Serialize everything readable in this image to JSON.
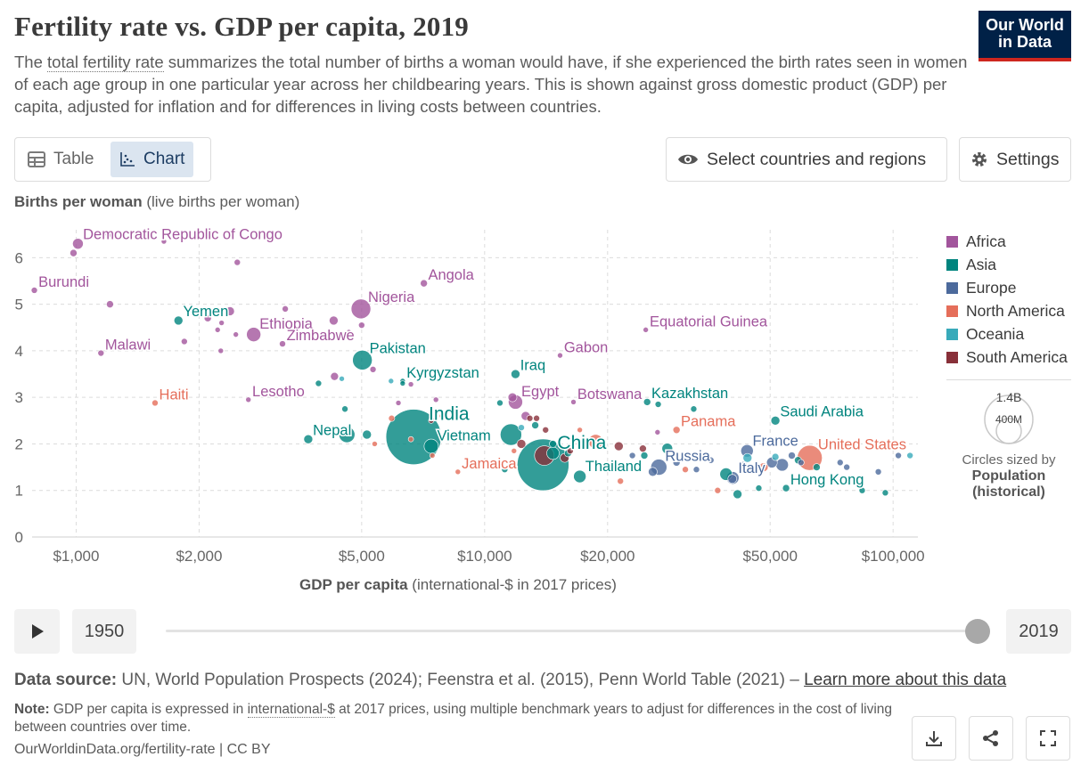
{
  "header": {
    "title": "Fertility rate vs. GDP per capita, 2019",
    "subtitle_before": "The ",
    "subtitle_link": "total fertility rate",
    "subtitle_after": " summarizes the total number of births a woman would have, if she experienced the birth rates seen in women of each age group in one particular year across her childbearing years. This is shown against gross domestic product (GDP) per capita, adjusted for inflation and for differences in living costs between countries.",
    "logo_line1": "Our World",
    "logo_line2": "in Data"
  },
  "controls": {
    "table_label": "Table",
    "chart_label": "Chart",
    "select_label": "Select countries and regions",
    "settings_label": "Settings"
  },
  "colors": {
    "Africa": "#a2559c",
    "Asia": "#00847e",
    "Europe": "#4c6a9c",
    "North America": "#e56e5a",
    "Oceania": "#38aaba",
    "South America": "#883039"
  },
  "chart_data": {
    "type": "scatter",
    "title": "Fertility rate vs. GDP per capita, 2019",
    "ylabel_bold": "Births per woman",
    "ylabel_rest": " (live births per woman)",
    "xlabel_bold": "GDP per capita",
    "xlabel_rest": " (international-$ in 2017 prices)",
    "x_scale": "log",
    "xlim": [
      780,
      115000
    ],
    "ylim": [
      0,
      6.6
    ],
    "x_ticks": [
      {
        "value": 1000,
        "label": "$1,000"
      },
      {
        "value": 2000,
        "label": "$2,000"
      },
      {
        "value": 5000,
        "label": "$5,000"
      },
      {
        "value": 10000,
        "label": "$10,000"
      },
      {
        "value": 20000,
        "label": "$20,000"
      },
      {
        "value": 50000,
        "label": "$50,000"
      },
      {
        "value": 100000,
        "label": "$100,000"
      }
    ],
    "y_ticks": [
      0,
      1,
      2,
      3,
      4,
      5,
      6
    ],
    "grid": true,
    "legend_position": "right",
    "legend": [
      "Africa",
      "Asia",
      "Europe",
      "North America",
      "Oceania",
      "South America"
    ],
    "size_legend": {
      "large": "1.4B",
      "small": "400M",
      "caption": "Circles sized by",
      "caption_bold": "Population (historical)"
    },
    "points": [
      {
        "label": "Democratic Republic of Congo",
        "region": "Africa",
        "x": 1010,
        "y": 6.3,
        "r": 6
      },
      {
        "label": "Burundi",
        "region": "Africa",
        "x": 790,
        "y": 5.3,
        "r": 3.5
      },
      {
        "label": "Angola",
        "region": "Africa",
        "x": 7100,
        "y": 5.45,
        "r": 4
      },
      {
        "label": "Nigeria",
        "region": "Africa",
        "x": 4980,
        "y": 4.9,
        "r": 11
      },
      {
        "label": "Yemen",
        "region": "Asia",
        "x": 1780,
        "y": 4.65,
        "r": 5
      },
      {
        "label": "Ethiopia",
        "region": "Africa",
        "x": 2720,
        "y": 4.35,
        "r": 8
      },
      {
        "label": "Pakistan",
        "region": "Asia",
        "x": 5020,
        "y": 3.8,
        "r": 11
      },
      {
        "label": "Malawi",
        "region": "Africa",
        "x": 1150,
        "y": 3.95,
        "r": 3.5
      },
      {
        "label": "Zimbabwe",
        "region": "Africa",
        "x": 3200,
        "y": 4.15,
        "r": 3.5
      },
      {
        "label": "Equatorial Guinea",
        "region": "Africa",
        "x": 24800,
        "y": 4.45,
        "r": 3
      },
      {
        "label": "Gabon",
        "region": "Africa",
        "x": 15300,
        "y": 3.9,
        "r": 3
      },
      {
        "label": "Kyrgyzstan",
        "region": "Asia",
        "x": 6300,
        "y": 3.35,
        "r": 3
      },
      {
        "label": "Iraq",
        "region": "Asia",
        "x": 11900,
        "y": 3.5,
        "r": 5
      },
      {
        "label": "Haiti",
        "region": "North America",
        "x": 1560,
        "y": 2.88,
        "r": 3.5
      },
      {
        "label": "Lesotho",
        "region": "Africa",
        "x": 2640,
        "y": 2.95,
        "r": 3
      },
      {
        "label": "Egypt",
        "region": "Africa",
        "x": 11900,
        "y": 2.9,
        "r": 8
      },
      {
        "label": "Botswana",
        "region": "Africa",
        "x": 16500,
        "y": 2.9,
        "r": 3
      },
      {
        "label": "Kazakhstan",
        "region": "Asia",
        "x": 25000,
        "y": 2.9,
        "r": 4
      },
      {
        "label": "India",
        "region": "Asia",
        "x": 6700,
        "y": 2.15,
        "r": 31
      },
      {
        "label": "Nepal",
        "region": "Asia",
        "x": 3700,
        "y": 2.1,
        "r": 5
      },
      {
        "label": "Vietnam",
        "region": "Asia",
        "x": 7400,
        "y": 1.95,
        "r": 8
      },
      {
        "label": "China",
        "region": "Asia",
        "x": 13900,
        "y": 1.55,
        "r": 29
      },
      {
        "label": "Jamaica",
        "region": "North America",
        "x": 8600,
        "y": 1.4,
        "r": 3
      },
      {
        "label": "Thailand",
        "region": "Asia",
        "x": 17100,
        "y": 1.3,
        "r": 7
      },
      {
        "label": "Panama",
        "region": "North America",
        "x": 29500,
        "y": 2.3,
        "r": 4
      },
      {
        "label": "Saudi Arabia",
        "region": "Asia",
        "x": 51500,
        "y": 2.5,
        "r": 5
      },
      {
        "label": "Russia",
        "region": "Europe",
        "x": 26700,
        "y": 1.5,
        "r": 9
      },
      {
        "label": "France",
        "region": "Europe",
        "x": 43900,
        "y": 1.85,
        "r": 7
      },
      {
        "label": "United States",
        "region": "North America",
        "x": 62500,
        "y": 1.7,
        "r": 14
      },
      {
        "label": "Italy",
        "region": "Europe",
        "x": 40500,
        "y": 1.27,
        "r": 7
      },
      {
        "label": "Hong Kong",
        "region": "Asia",
        "x": 54700,
        "y": 1.05,
        "r": 4
      },
      {
        "label": "",
        "region": "Africa",
        "x": 1200,
        "y": 6.5,
        "r": 3.5
      },
      {
        "label": "",
        "region": "Africa",
        "x": 985,
        "y": 6.1,
        "r": 4
      },
      {
        "label": "",
        "region": "Africa",
        "x": 1640,
        "y": 6.35,
        "r": 3
      },
      {
        "label": "",
        "region": "Africa",
        "x": 2480,
        "y": 5.9,
        "r": 3.5
      },
      {
        "label": "",
        "region": "Africa",
        "x": 1210,
        "y": 5.0,
        "r": 4
      },
      {
        "label": "",
        "region": "Africa",
        "x": 2380,
        "y": 4.85,
        "r": 5
      },
      {
        "label": "",
        "region": "Africa",
        "x": 2100,
        "y": 4.7,
        "r": 4
      },
      {
        "label": "",
        "region": "Africa",
        "x": 2270,
        "y": 4.6,
        "r": 3
      },
      {
        "label": "",
        "region": "Africa",
        "x": 3250,
        "y": 4.9,
        "r": 3.5
      },
      {
        "label": "",
        "region": "Africa",
        "x": 4270,
        "y": 4.65,
        "r": 5
      },
      {
        "label": "",
        "region": "Africa",
        "x": 4650,
        "y": 4.4,
        "r": 3
      },
      {
        "label": "",
        "region": "Africa",
        "x": 5000,
        "y": 4.55,
        "r": 3.5
      },
      {
        "label": "",
        "region": "Africa",
        "x": 2220,
        "y": 4.45,
        "r": 3
      },
      {
        "label": "",
        "region": "Africa",
        "x": 2460,
        "y": 4.35,
        "r": 3
      },
      {
        "label": "",
        "region": "Africa",
        "x": 1840,
        "y": 4.2,
        "r": 3.5
      },
      {
        "label": "",
        "region": "Africa",
        "x": 2260,
        "y": 4.0,
        "r": 3
      },
      {
        "label": "",
        "region": "Africa",
        "x": 5330,
        "y": 3.6,
        "r": 3.5
      },
      {
        "label": "",
        "region": "Africa",
        "x": 4290,
        "y": 3.45,
        "r": 4.5
      },
      {
        "label": "",
        "region": "Africa",
        "x": 6600,
        "y": 3.28,
        "r": 3
      },
      {
        "label": "",
        "region": "Africa",
        "x": 7600,
        "y": 2.95,
        "r": 3
      },
      {
        "label": "",
        "region": "Africa",
        "x": 8450,
        "y": 2.7,
        "r": 3
      },
      {
        "label": "",
        "region": "Africa",
        "x": 12600,
        "y": 2.6,
        "r": 5
      },
      {
        "label": "",
        "region": "Africa",
        "x": 6150,
        "y": 2.88,
        "r": 3
      },
      {
        "label": "",
        "region": "Africa",
        "x": 11700,
        "y": 3.0,
        "r": 5
      },
      {
        "label": "",
        "region": "Africa",
        "x": 26500,
        "y": 2.25,
        "r": 3
      },
      {
        "label": "",
        "region": "Asia",
        "x": 3920,
        "y": 3.3,
        "r": 3.5
      },
      {
        "label": "",
        "region": "Asia",
        "x": 4550,
        "y": 2.75,
        "r": 3.5
      },
      {
        "label": "",
        "region": "Asia",
        "x": 6300,
        "y": 3.3,
        "r": 3
      },
      {
        "label": "",
        "region": "Asia",
        "x": 10900,
        "y": 2.88,
        "r": 3.5
      },
      {
        "label": "",
        "region": "Asia",
        "x": 11600,
        "y": 2.2,
        "r": 12
      },
      {
        "label": "",
        "region": "Asia",
        "x": 5150,
        "y": 2.2,
        "r": 5
      },
      {
        "label": "",
        "region": "Asia",
        "x": 4600,
        "y": 2.2,
        "r": 9
      },
      {
        "label": "",
        "region": "Asia",
        "x": 13300,
        "y": 2.4,
        "r": 4
      },
      {
        "label": "",
        "region": "Asia",
        "x": 14700,
        "y": 1.8,
        "r": 7
      },
      {
        "label": "",
        "region": "Asia",
        "x": 14700,
        "y": 2.0,
        "r": 4
      },
      {
        "label": "",
        "region": "Asia",
        "x": 11200,
        "y": 1.45,
        "r": 3.5
      },
      {
        "label": "",
        "region": "Asia",
        "x": 16000,
        "y": 1.8,
        "r": 4
      },
      {
        "label": "",
        "region": "Asia",
        "x": 26600,
        "y": 2.85,
        "r": 3.5
      },
      {
        "label": "",
        "region": "Asia",
        "x": 28000,
        "y": 1.9,
        "r": 6
      },
      {
        "label": "",
        "region": "Asia",
        "x": 32500,
        "y": 2.75,
        "r": 3.5
      },
      {
        "label": "",
        "region": "Asia",
        "x": 39000,
        "y": 1.35,
        "r": 7
      },
      {
        "label": "",
        "region": "Asia",
        "x": 41600,
        "y": 0.92,
        "r": 5
      },
      {
        "label": "",
        "region": "Asia",
        "x": 46900,
        "y": 1.05,
        "r": 3.5
      },
      {
        "label": "",
        "region": "Asia",
        "x": 58500,
        "y": 1.65,
        "r": 4
      },
      {
        "label": "",
        "region": "Asia",
        "x": 65000,
        "y": 1.5,
        "r": 4
      },
      {
        "label": "",
        "region": "Asia",
        "x": 84000,
        "y": 1.0,
        "r": 3.5
      },
      {
        "label": "",
        "region": "Asia",
        "x": 95700,
        "y": 0.95,
        "r": 3.5
      },
      {
        "label": "",
        "region": "Asia",
        "x": 24600,
        "y": 1.75,
        "r": 4
      },
      {
        "label": "",
        "region": "Europe",
        "x": 20500,
        "y": 1.5,
        "r": 4
      },
      {
        "label": "",
        "region": "Europe",
        "x": 23000,
        "y": 1.75,
        "r": 3.5
      },
      {
        "label": "",
        "region": "Europe",
        "x": 29500,
        "y": 1.6,
        "r": 4
      },
      {
        "label": "",
        "region": "Europe",
        "x": 30800,
        "y": 1.75,
        "r": 3.5
      },
      {
        "label": "",
        "region": "Europe",
        "x": 33000,
        "y": 1.45,
        "r": 3.5
      },
      {
        "label": "",
        "region": "Europe",
        "x": 35800,
        "y": 1.65,
        "r": 3.5
      },
      {
        "label": "",
        "region": "Europe",
        "x": 40400,
        "y": 1.25,
        "r": 5
      },
      {
        "label": "",
        "region": "Europe",
        "x": 43000,
        "y": 1.55,
        "r": 4
      },
      {
        "label": "",
        "region": "Europe",
        "x": 50500,
        "y": 1.6,
        "r": 6
      },
      {
        "label": "",
        "region": "Europe",
        "x": 53500,
        "y": 1.55,
        "r": 7
      },
      {
        "label": "",
        "region": "Europe",
        "x": 56500,
        "y": 1.75,
        "r": 4
      },
      {
        "label": "",
        "region": "Europe",
        "x": 59500,
        "y": 1.6,
        "r": 3.5
      },
      {
        "label": "",
        "region": "Europe",
        "x": 74200,
        "y": 1.6,
        "r": 3.5
      },
      {
        "label": "",
        "region": "Europe",
        "x": 77000,
        "y": 1.5,
        "r": 3.5
      },
      {
        "label": "",
        "region": "Europe",
        "x": 92000,
        "y": 1.4,
        "r": 3.5
      },
      {
        "label": "",
        "region": "Europe",
        "x": 103000,
        "y": 1.75,
        "r": 3.5
      },
      {
        "label": "",
        "region": "Europe",
        "x": 25800,
        "y": 1.4,
        "r": 5
      },
      {
        "label": "",
        "region": "North America",
        "x": 5380,
        "y": 2.0,
        "r": 3
      },
      {
        "label": "",
        "region": "North America",
        "x": 5920,
        "y": 2.55,
        "r": 3.5
      },
      {
        "label": "",
        "region": "North America",
        "x": 6600,
        "y": 2.1,
        "r": 3
      },
      {
        "label": "",
        "region": "North America",
        "x": 7860,
        "y": 2.6,
        "r": 3
      },
      {
        "label": "",
        "region": "North America",
        "x": 7450,
        "y": 1.75,
        "r": 3
      },
      {
        "label": "",
        "region": "North America",
        "x": 11800,
        "y": 1.85,
        "r": 3
      },
      {
        "label": "",
        "region": "North America",
        "x": 18700,
        "y": 2.05,
        "r": 8
      },
      {
        "label": "",
        "region": "North America",
        "x": 17100,
        "y": 2.3,
        "r": 3
      },
      {
        "label": "",
        "region": "North America",
        "x": 21500,
        "y": 1.2,
        "r": 3.5
      },
      {
        "label": "",
        "region": "North America",
        "x": 31000,
        "y": 1.45,
        "r": 3.5
      },
      {
        "label": "",
        "region": "North America",
        "x": 48200,
        "y": 1.5,
        "r": 5
      },
      {
        "label": "",
        "region": "North America",
        "x": 37200,
        "y": 1.0,
        "r": 3.5
      },
      {
        "label": "",
        "region": "Oceania",
        "x": 4470,
        "y": 3.4,
        "r": 3
      },
      {
        "label": "",
        "region": "Oceania",
        "x": 5900,
        "y": 3.35,
        "r": 3
      },
      {
        "label": "",
        "region": "Oceania",
        "x": 12300,
        "y": 2.35,
        "r": 3.5
      },
      {
        "label": "",
        "region": "Oceania",
        "x": 44000,
        "y": 1.7,
        "r": 5
      },
      {
        "label": "",
        "region": "Oceania",
        "x": 51500,
        "y": 1.72,
        "r": 4
      },
      {
        "label": "",
        "region": "Oceania",
        "x": 110000,
        "y": 1.75,
        "r": 3.5
      },
      {
        "label": "",
        "region": "South America",
        "x": 7400,
        "y": 2.5,
        "r": 3
      },
      {
        "label": "",
        "region": "South America",
        "x": 12900,
        "y": 2.55,
        "r": 3.5
      },
      {
        "label": "",
        "region": "South America",
        "x": 13400,
        "y": 2.55,
        "r": 3.5
      },
      {
        "label": "",
        "region": "South America",
        "x": 12300,
        "y": 2.0,
        "r": 5
      },
      {
        "label": "",
        "region": "South America",
        "x": 14000,
        "y": 1.75,
        "r": 11
      },
      {
        "label": "",
        "region": "South America",
        "x": 15700,
        "y": 1.7,
        "r": 5
      },
      {
        "label": "",
        "region": "South America",
        "x": 14100,
        "y": 2.3,
        "r": 3.5
      },
      {
        "label": "",
        "region": "South America",
        "x": 21300,
        "y": 1.95,
        "r": 5
      },
      {
        "label": "",
        "region": "South America",
        "x": 24400,
        "y": 1.9,
        "r": 4
      },
      {
        "label": "",
        "region": "South America",
        "x": 16200,
        "y": 1.85,
        "r": 3.5
      }
    ]
  },
  "timeline": {
    "start_year": "1950",
    "end_year": "2019"
  },
  "footer": {
    "source_label": "Data source:",
    "source_text": " UN, World Population Prospects (2024); Feenstra et al. (2015), Penn World Table (2021) – ",
    "source_link": "Learn more about this data",
    "note_label": "Note:",
    "note_before": " GDP per capita is expressed in ",
    "note_link": "international-$",
    "note_after": " at 2017 prices, using multiple benchmark years to adjust for differences in the cost of living between countries over time.",
    "url": "OurWorldinData.org/fertility-rate | CC BY"
  }
}
